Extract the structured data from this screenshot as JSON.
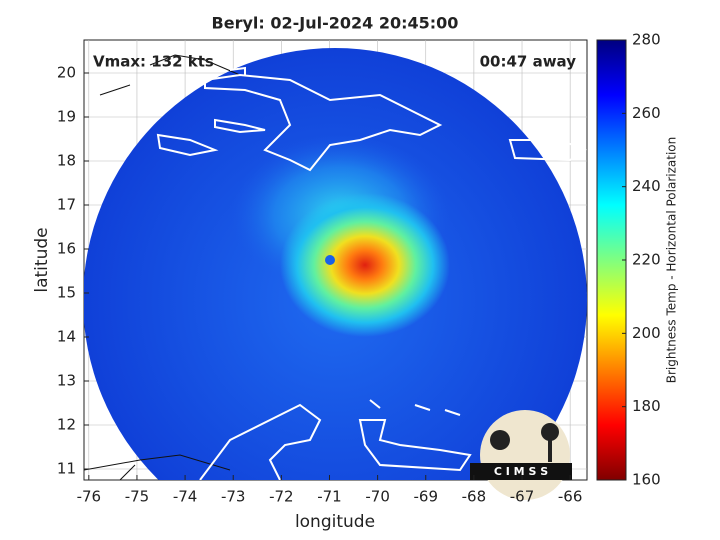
{
  "chart_data": {
    "type": "heatmap",
    "title": "Beryl: 02-Jul-2024 20:45:00",
    "annotations": [
      "Vmax: 132 kts",
      "00:47 away"
    ],
    "x_label": "longitude",
    "y_label": "latitude",
    "xlim": [
      -76.1,
      -65.65
    ],
    "xticks": [
      -76,
      -75,
      -74,
      -73,
      -72,
      -71,
      -70,
      -69,
      -68,
      -67,
      -66
    ],
    "ylim": [
      10.75,
      20.75
    ],
    "yticks": [
      11,
      12,
      13,
      14,
      15,
      16,
      17,
      18,
      19,
      20
    ],
    "grid": true,
    "colorbar": {
      "label": "Brightness Temp - Horizontal Polarization",
      "colormap": "jet",
      "clim": [
        160,
        280
      ],
      "ticks": [
        160,
        180,
        200,
        220,
        240,
        260,
        280
      ]
    },
    "logo_text": "C I M S S"
  }
}
